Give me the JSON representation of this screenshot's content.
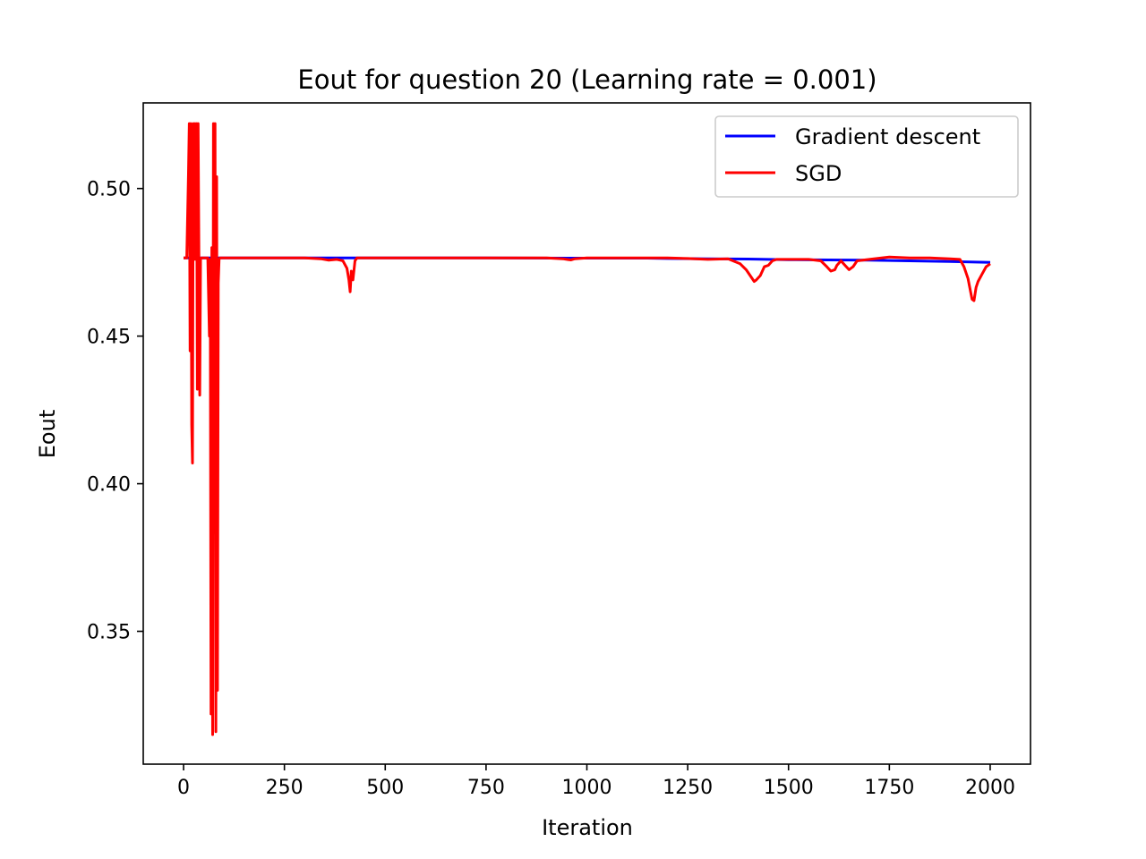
{
  "chart_data": {
    "type": "line",
    "title": "Eout for question 20 (Learning rate = 0.001)",
    "xlabel": "Iteration",
    "ylabel": "Eout",
    "xlim": [
      -100,
      2100
    ],
    "ylim": [
      0.305,
      0.529
    ],
    "xticks": [
      0,
      250,
      500,
      750,
      1000,
      1250,
      1500,
      1750,
      2000
    ],
    "yticks": [
      0.35,
      0.4,
      0.45,
      0.5
    ],
    "xtick_labels": [
      "0",
      "250",
      "500",
      "750",
      "1000",
      "1250",
      "1500",
      "1750",
      "2000"
    ],
    "ytick_labels": [
      "0.35",
      "0.40",
      "0.45",
      "0.50"
    ],
    "grid": false,
    "legend": "top-right",
    "series": [
      {
        "name": "Gradient descent",
        "color": "#0000ff",
        "x": [
          0,
          250,
          500,
          750,
          1000,
          1150,
          1200,
          1300,
          1400,
          1500,
          1600,
          1700,
          1800,
          1900,
          2000
        ],
        "y": [
          0.4765,
          0.4765,
          0.4765,
          0.4765,
          0.4764,
          0.4764,
          0.4763,
          0.4762,
          0.4761,
          0.4759,
          0.4758,
          0.4757,
          0.4755,
          0.4753,
          0.475
        ]
      },
      {
        "name": "SGD",
        "color": "#ff0000",
        "x": [
          0,
          8,
          12,
          14,
          16,
          18,
          20,
          22,
          24,
          26,
          28,
          30,
          32,
          34,
          36,
          38,
          40,
          42,
          44,
          48,
          55,
          60,
          64,
          66,
          68,
          70,
          72,
          74,
          76,
          78,
          80,
          82,
          84,
          86,
          88,
          90,
          95,
          100,
          150,
          200,
          250,
          300,
          340,
          360,
          380,
          395,
          405,
          410,
          413,
          416,
          420,
          425,
          430,
          450,
          500,
          550,
          600,
          650,
          700,
          750,
          800,
          850,
          900,
          940,
          950,
          960,
          970,
          1000,
          1050,
          1100,
          1150,
          1200,
          1250,
          1300,
          1350,
          1380,
          1395,
          1405,
          1415,
          1420,
          1430,
          1440,
          1450,
          1460,
          1470,
          1490,
          1500,
          1550,
          1580,
          1595,
          1605,
          1615,
          1620,
          1630,
          1640,
          1650,
          1660,
          1670,
          1700,
          1750,
          1800,
          1850,
          1900,
          1925,
          1935,
          1945,
          1955,
          1960,
          1965,
          1970,
          1980,
          1990,
          2000
        ],
        "y": [
          0.4765,
          0.4765,
          0.505,
          0.522,
          0.445,
          0.522,
          0.42,
          0.407,
          0.522,
          0.476,
          0.522,
          0.476,
          0.522,
          0.432,
          0.522,
          0.476,
          0.43,
          0.476,
          0.4765,
          0.4765,
          0.4765,
          0.4765,
          0.45,
          0.476,
          0.322,
          0.48,
          0.315,
          0.522,
          0.476,
          0.522,
          0.316,
          0.504,
          0.33,
          0.468,
          0.476,
          0.4765,
          0.4765,
          0.4765,
          0.4765,
          0.4765,
          0.4765,
          0.4765,
          0.4762,
          0.4757,
          0.476,
          0.4755,
          0.473,
          0.469,
          0.465,
          0.472,
          0.469,
          0.4755,
          0.4765,
          0.4765,
          0.4765,
          0.4765,
          0.4765,
          0.4765,
          0.4765,
          0.4765,
          0.4765,
          0.4765,
          0.4765,
          0.4762,
          0.476,
          0.4758,
          0.4762,
          0.4765,
          0.4765,
          0.4765,
          0.4765,
          0.4765,
          0.4763,
          0.476,
          0.4762,
          0.4745,
          0.4725,
          0.4705,
          0.4685,
          0.469,
          0.4705,
          0.4735,
          0.474,
          0.4755,
          0.476,
          0.476,
          0.476,
          0.476,
          0.4755,
          0.4735,
          0.472,
          0.4725,
          0.474,
          0.4755,
          0.474,
          0.4725,
          0.4735,
          0.4755,
          0.476,
          0.4768,
          0.4765,
          0.4765,
          0.4762,
          0.476,
          0.4735,
          0.4695,
          0.4625,
          0.462,
          0.4665,
          0.4685,
          0.471,
          0.4735,
          0.4745
        ]
      }
    ]
  }
}
